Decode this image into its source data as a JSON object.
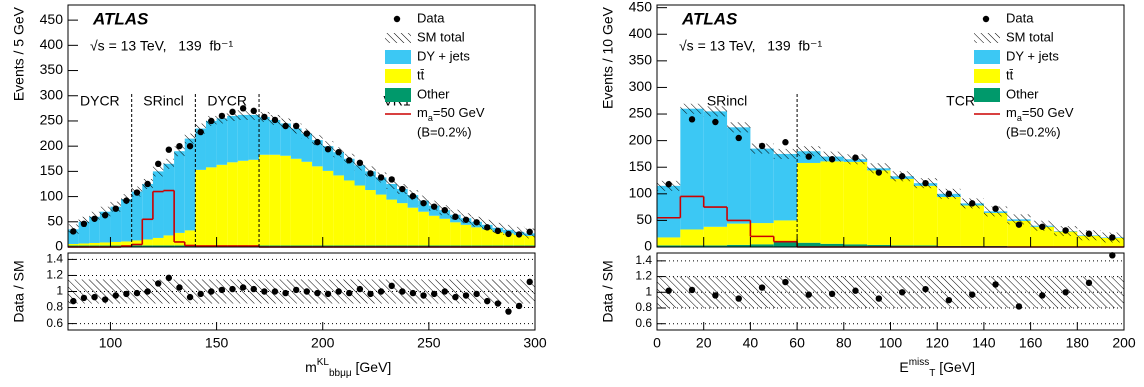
{
  "chart_data": [
    {
      "type": "histogram",
      "atlas": "ATLAS",
      "energy": "√s = 13 TeV,   139  fb⁻¹",
      "y_label": "Events / 5 GeV",
      "ratio_label": "Data / SM",
      "x_label": [
        "m",
        "KL",
        "bbμμ",
        " [GeV]"
      ],
      "bins": [
        80,
        85,
        90,
        95,
        100,
        105,
        110,
        115,
        120,
        125,
        130,
        135,
        140,
        145,
        150,
        155,
        160,
        165,
        170,
        175,
        180,
        185,
        190,
        195,
        200,
        205,
        210,
        215,
        220,
        225,
        230,
        235,
        240,
        245,
        250,
        255,
        260,
        265,
        270,
        275,
        280,
        285,
        290,
        295,
        300
      ],
      "xlim": [
        80,
        300
      ],
      "xticks": [
        100,
        150,
        200,
        250,
        300
      ],
      "ylim": [
        0,
        480
      ],
      "yticks": [
        0,
        50,
        100,
        150,
        200,
        250,
        300,
        350,
        400,
        450
      ],
      "ratio_ylim": [
        0.52,
        1.48
      ],
      "ratio_yticks": [
        0.6,
        0.8,
        1,
        1.2,
        1.4
      ],
      "ratio_grid": true,
      "ratio_band": [
        0.85,
        1.15
      ],
      "regions": [
        "DYCR",
        "SRincl",
        "DYCR",
        "VR1"
      ],
      "region_boundaries": [
        110,
        140,
        170
      ],
      "data": {
        "name": "Data",
        "values": [
          31,
          46,
          56,
          63,
          76,
          92,
          108,
          125,
          165,
          193,
          200,
          200,
          228,
          250,
          260,
          268,
          275,
          270,
          258,
          252,
          240,
          240,
          225,
          208,
          194,
          188,
          172,
          167,
          146,
          138,
          134,
          115,
          101,
          87,
          80,
          73,
          60,
          54,
          49,
          39,
          32,
          26,
          25,
          30
        ],
        "ratio": [
          0.88,
          0.92,
          0.93,
          0.9,
          0.95,
          0.97,
          0.98,
          1.0,
          1.1,
          1.17,
          1.05,
          0.93,
          0.97,
          1.0,
          1.02,
          1.03,
          1.05,
          1.03,
          1.0,
          1.0,
          0.98,
          1.02,
          1.0,
          0.98,
          0.97,
          1.0,
          0.98,
          1.03,
          0.97,
          1.0,
          1.07,
          1.0,
          0.98,
          0.95,
          0.97,
          1.0,
          0.93,
          0.95,
          0.97,
          0.88,
          0.85,
          0.75,
          0.82,
          1.12
        ]
      },
      "sm_total": {
        "name": "SM total"
      },
      "series": [
        {
          "name": "DY + jets",
          "color": "#3cc8f4",
          "values": [
            29,
            43,
            52,
            61,
            70,
            84,
            97,
            110,
            132,
            142,
            162,
            182,
            82,
            92,
            92,
            92,
            91,
            89,
            75,
            69,
            64,
            60,
            56,
            52,
            49,
            46,
            43,
            40,
            37,
            34,
            31,
            28,
            25,
            22,
            20,
            17,
            15,
            13,
            11,
            9,
            8,
            7,
            6,
            5
          ]
        },
        {
          "name": "tt̄",
          "color": "#ffff00",
          "values": [
            3,
            4,
            5,
            6,
            7,
            8,
            10,
            12,
            15,
            20,
            25,
            30,
            150,
            155,
            160,
            165,
            168,
            170,
            180,
            180,
            178,
            172,
            166,
            157,
            148,
            139,
            129,
            119,
            110,
            101,
            91,
            84,
            75,
            67,
            59,
            53,
            46,
            41,
            36,
            32,
            27,
            24,
            21,
            19
          ]
        },
        {
          "name": "Other",
          "color": "#00996b",
          "values": [
            3,
            3,
            3,
            3,
            3,
            3,
            3,
            3,
            3,
            3,
            3,
            3,
            3,
            3,
            3,
            3,
            3,
            3,
            3,
            3,
            3,
            3,
            3,
            3,
            3,
            3,
            3,
            3,
            3,
            3,
            3,
            3,
            3,
            3,
            3,
            3,
            3,
            3,
            3,
            3,
            3,
            3,
            3,
            3
          ]
        }
      ],
      "signal": {
        "name": [
          "m",
          "a",
          "=50 GeV"
        ],
        "note": "(B=0.2%)",
        "color": "#cc0000",
        "values": [
          0,
          0,
          0,
          0,
          0,
          2,
          5,
          55,
          110,
          112,
          10,
          3,
          2,
          2,
          2,
          2,
          2,
          2,
          0,
          0,
          0,
          0,
          0,
          0,
          0,
          0,
          0,
          0,
          0,
          0,
          0,
          0,
          0,
          0,
          0,
          0,
          0,
          0,
          0,
          0,
          0,
          0,
          0,
          0
        ]
      }
    },
    {
      "type": "histogram",
      "atlas": "ATLAS",
      "energy": "√s = 13 TeV,   139  fb⁻¹",
      "y_label": "Events / 10 GeV",
      "ratio_label": "Data / SM",
      "x_label": [
        "E",
        "miss",
        "T",
        " [GeV]"
      ],
      "bins": [
        0,
        10,
        20,
        30,
        40,
        50,
        60,
        70,
        80,
        90,
        100,
        110,
        120,
        130,
        140,
        150,
        160,
        170,
        180,
        190,
        200
      ],
      "xlim": [
        0,
        200
      ],
      "xticks": [
        0,
        20,
        40,
        60,
        80,
        100,
        120,
        140,
        160,
        180,
        200
      ],
      "ylim": [
        0,
        455
      ],
      "yticks": [
        0,
        50,
        100,
        150,
        200,
        250,
        300,
        350,
        400,
        450
      ],
      "ratio_ylim": [
        0.52,
        1.5
      ],
      "ratio_yticks": [
        0.6,
        0.8,
        1,
        1.2,
        1.4
      ],
      "ratio_grid": true,
      "ratio_band": [
        0.8,
        1.2
      ],
      "regions": [
        "SRincl",
        "TCR"
      ],
      "region_boundaries": [
        60
      ],
      "data": {
        "name": "Data",
        "values": [
          118,
          240,
          235,
          205,
          190,
          197,
          170,
          165,
          168,
          140,
          133,
          120,
          100,
          82,
          72,
          42,
          38,
          31,
          25,
          18
        ],
        "ratio": [
          1.02,
          1.03,
          0.96,
          0.92,
          1.06,
          1.13,
          0.97,
          0.98,
          1.02,
          0.92,
          1.0,
          1.04,
          0.9,
          0.97,
          1.1,
          0.82,
          0.96,
          1.0,
          1.12,
          1.47
        ]
      },
      "sm_total": {
        "name": "SM total"
      },
      "series": [
        {
          "name": "DY + jets",
          "color": "#3cc8f4",
          "values": [
            97,
            227,
            217,
            181,
            140,
            125,
            22,
            9,
            5,
            4,
            5,
            5,
            6,
            4,
            3,
            3,
            2,
            1,
            1,
            1
          ]
        },
        {
          "name": "tt̄",
          "color": "#ffff00",
          "values": [
            15,
            30,
            35,
            40,
            40,
            40,
            150,
            155,
            155,
            140,
            125,
            112,
            92,
            76,
            62,
            48,
            37,
            28,
            20,
            16
          ]
        },
        {
          "name": "Other",
          "color": "#00996b",
          "values": [
            3,
            3,
            3,
            4,
            5,
            10,
            8,
            6,
            5,
            4,
            3,
            3,
            2,
            2,
            2,
            1,
            1,
            1,
            1,
            1
          ]
        }
      ],
      "signal": {
        "name": [
          "m",
          "a",
          "=50 GeV"
        ],
        "note": "(B=0.2%)",
        "color": "#cc0000",
        "values": [
          55,
          95,
          75,
          50,
          20,
          10,
          0,
          0,
          0,
          0,
          0,
          0,
          0,
          0,
          0,
          0,
          0,
          0,
          0,
          0
        ]
      }
    }
  ]
}
